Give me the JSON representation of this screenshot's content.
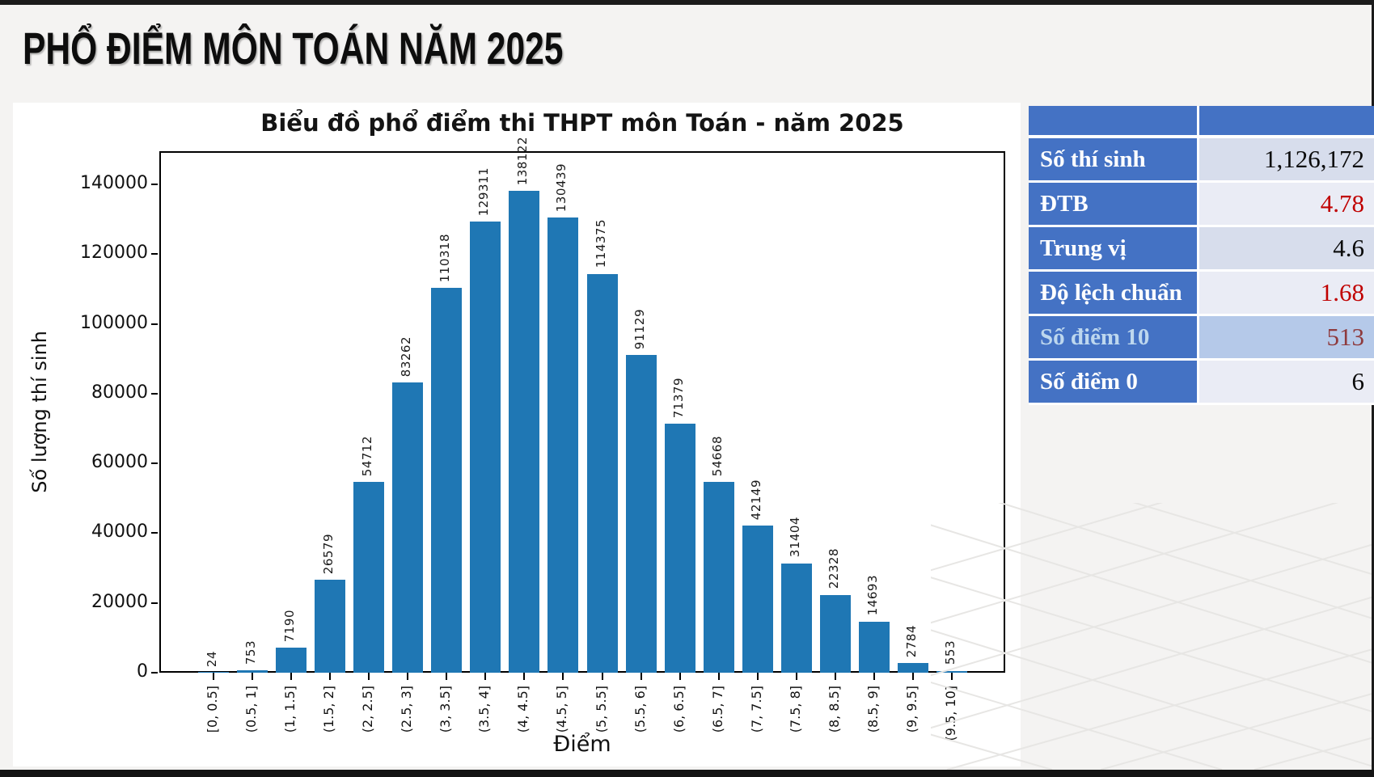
{
  "page": {
    "title": "PHỔ ĐIỂM MÔN TOÁN NĂM 2025"
  },
  "chart_data": {
    "type": "bar",
    "title": "Biểu đồ phổ điểm thi THPT môn Toán - năm 2025",
    "xlabel": "Điểm",
    "ylabel": "Số lượng thí sinh",
    "categories": [
      "[0, 0.5]",
      "(0.5, 1]",
      "(1, 1.5]",
      "(1.5, 2]",
      "(2, 2.5]",
      "(2.5, 3]",
      "(3, 3.5]",
      "(3.5, 4]",
      "(4, 4.5]",
      "(4.5, 5]",
      "(5, 5.5]",
      "(5.5, 6]",
      "(6, 6.5]",
      "(6.5, 7]",
      "(7, 7.5]",
      "(7.5, 8]",
      "(8, 8.5]",
      "(8.5, 9]",
      "(9, 9.5]",
      "(9.5, 10]"
    ],
    "values": [
      24,
      753,
      7190,
      26579,
      54712,
      83262,
      110318,
      129311,
      138122,
      130439,
      114375,
      91129,
      71379,
      54668,
      42149,
      31404,
      22328,
      14693,
      2784,
      553
    ],
    "value_labels_shown": true,
    "bar_color": "#1f77b4",
    "yticks": [
      0,
      20000,
      40000,
      60000,
      80000,
      100000,
      120000,
      140000
    ],
    "ylim": [
      0,
      149500
    ],
    "grid": false,
    "legend": "none"
  },
  "stats_table": {
    "header": [
      "",
      ""
    ],
    "rows": [
      {
        "label": "Số thí sinh",
        "value": "1,126,172",
        "value_color": "#0a0a0a",
        "label_color": "#ffffff",
        "highlight": false
      },
      {
        "label": "ĐTB",
        "value": "4.78",
        "value_color": "#c00000",
        "label_color": "#ffffff",
        "highlight": false
      },
      {
        "label": "Trung vị",
        "value": "4.6",
        "value_color": "#0a0a0a",
        "label_color": "#ffffff",
        "highlight": false
      },
      {
        "label": "Độ lệch chuẩn",
        "value": "1.68",
        "value_color": "#c00000",
        "label_color": "#ffffff",
        "highlight": false
      },
      {
        "label": "Số điểm 10",
        "value": "513",
        "value_color": "#8e3a3d",
        "label_color": "#bdd7ee",
        "highlight": true
      },
      {
        "label": "Số điểm 0",
        "value": "6",
        "value_color": "#0a0a0a",
        "label_color": "#ffffff",
        "highlight": false
      }
    ],
    "colors": {
      "label_bg": "#4472c4",
      "row_bg_dark": "#d7ddec",
      "row_bg_light": "#eaecf5",
      "highlight_bg": "#b5c9e9",
      "accent_red": "#c00000"
    }
  }
}
